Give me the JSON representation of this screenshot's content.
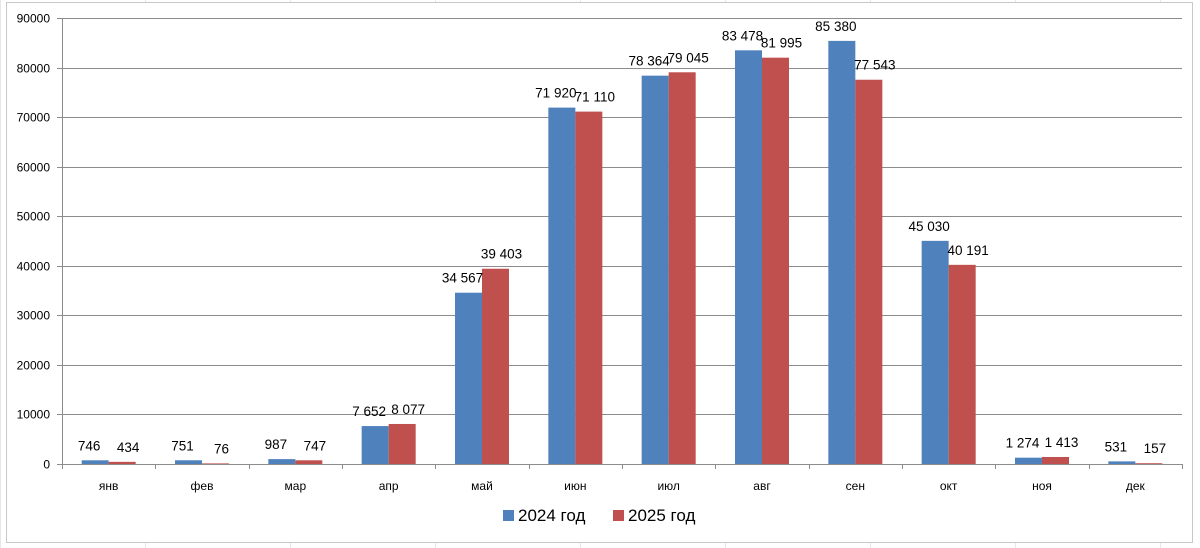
{
  "chart_data": {
    "type": "bar",
    "title": "",
    "xlabel": "",
    "ylabel": "",
    "ylim": [
      0,
      90000
    ],
    "yticks": [
      0,
      10000,
      20000,
      30000,
      40000,
      50000,
      60000,
      70000,
      80000,
      90000
    ],
    "ytick_labels": [
      "0",
      "10000",
      "20000",
      "30000",
      "40000",
      "50000",
      "60000",
      "70000",
      "80000",
      "90000"
    ],
    "grid": true,
    "legend_position": "bottom-center",
    "categories": [
      "янв",
      "фев",
      "мар",
      "апр",
      "май",
      "июн",
      "июл",
      "авг",
      "сен",
      "окт",
      "ноя",
      "дек"
    ],
    "series": [
      {
        "name": "2024 год",
        "color": "#4f81bd",
        "values": [
          746,
          751,
          987,
          7652,
          34567,
          71920,
          78364,
          83478,
          85380,
          45030,
          1274,
          531
        ],
        "labels": [
          "746",
          "751",
          "987",
          "7 652",
          "34 567",
          "71 920",
          "78 364",
          "83 478",
          "85 380",
          "45 030",
          "1 274",
          "531"
        ]
      },
      {
        "name": "2025 год",
        "color": "#c0504d",
        "values": [
          434,
          76,
          747,
          8077,
          39403,
          71110,
          79045,
          81995,
          77543,
          40191,
          1413,
          157
        ],
        "labels": [
          "434",
          "76",
          "747",
          "8 077",
          "39 403",
          "71 110",
          "79 045",
          "81 995",
          "77 543",
          "40 191",
          "1 413",
          "157"
        ]
      }
    ]
  }
}
